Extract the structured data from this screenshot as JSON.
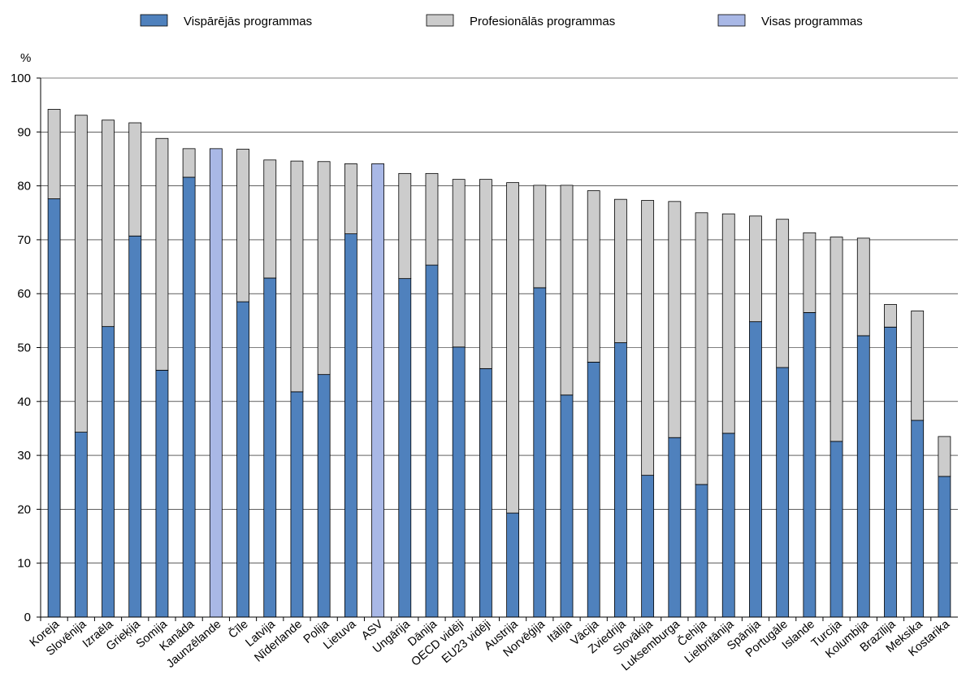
{
  "chart_data": {
    "type": "bar",
    "stacked": true,
    "ylabel": "%",
    "ylim": [
      0,
      100
    ],
    "yticks": [
      0,
      10,
      20,
      30,
      40,
      50,
      60,
      70,
      80,
      90,
      100
    ],
    "grid": true,
    "legend_position": "top",
    "categories": [
      "Koreja",
      "Slovēnija",
      "Izraēla",
      "Grieķija",
      "Somija",
      "Kanāda",
      "Jaunzēlande",
      "Čīle",
      "Latvija",
      "Nīderlande",
      "Polija",
      "Lietuva",
      "ASV",
      "Ungārija",
      "Dānija",
      "OECD vidēji",
      "EU23 vidēji",
      "Austrija",
      "Norvēģija",
      "Itālija",
      "Vācija",
      "Zviedrija",
      "Slovākija",
      "Luksemburga",
      "Čehija",
      "Lielbritānija",
      "Spānija",
      "Portugāle",
      "Islande",
      "Turcija",
      "Kolumbija",
      "Brazīlija",
      "Meksika",
      "Kostarika"
    ],
    "series": [
      {
        "name": "Vispārējās programmas",
        "color": "#4f81bd",
        "values": [
          77.6,
          34.3,
          53.9,
          70.7,
          45.8,
          81.6,
          null,
          58.5,
          62.9,
          41.8,
          45.0,
          71.1,
          null,
          62.8,
          65.3,
          50.1,
          46.1,
          19.3,
          61.1,
          41.2,
          47.3,
          50.9,
          26.3,
          33.3,
          24.6,
          34.1,
          54.8,
          46.3,
          56.5,
          32.6,
          52.2,
          53.8,
          36.5,
          26.1
        ]
      },
      {
        "name": "Profesionālās programmas",
        "color": "#cccccc",
        "values": [
          16.6,
          58.8,
          38.3,
          21.0,
          43.0,
          5.3,
          null,
          28.3,
          21.9,
          42.8,
          39.5,
          13.0,
          null,
          19.5,
          17.0,
          31.1,
          35.1,
          61.3,
          19.0,
          38.9,
          31.8,
          26.6,
          51.0,
          43.8,
          50.4,
          40.7,
          19.6,
          27.5,
          14.8,
          37.9,
          18.1,
          4.2,
          20.3,
          7.4
        ]
      },
      {
        "name": "Visas programmas",
        "color": "#a9b8e6",
        "values": [
          null,
          null,
          null,
          null,
          null,
          null,
          86.9,
          null,
          null,
          null,
          null,
          null,
          84.1,
          null,
          null,
          null,
          null,
          null,
          null,
          null,
          null,
          null,
          null,
          null,
          null,
          null,
          null,
          null,
          null,
          null,
          null,
          null,
          null,
          null
        ]
      }
    ]
  }
}
